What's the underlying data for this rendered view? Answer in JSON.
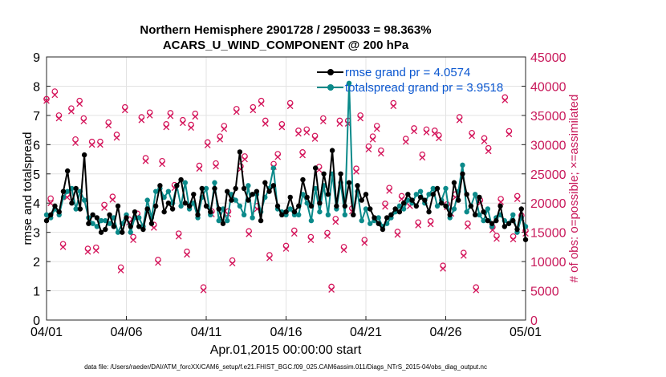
{
  "chart_data": {
    "type": "line",
    "title": "Northern Hemisphere 2901728 / 2950033 = 98.363%",
    "subtitle": "ACARS_U_WIND_COMPONENT @ 200 hPa",
    "xlabel": "Apr.01,2015 00:00:00 start",
    "ylabel_left": "rmse and totalspread",
    "ylabel_right": "# of obs: o=possible; ×=assimilated",
    "x_tick_labels": [
      "04/01",
      "04/06",
      "04/11",
      "04/16",
      "04/21",
      "04/26",
      "05/01"
    ],
    "x_tick_days": [
      0,
      5,
      10,
      15,
      20,
      25,
      30
    ],
    "xlim_days": [
      0,
      30
    ],
    "ylim_left": [
      0,
      9
    ],
    "yticks_left": [
      "0",
      "1",
      "2",
      "3",
      "4",
      "5",
      "6",
      "7",
      "8",
      "9"
    ],
    "ylim_right": [
      0,
      45000
    ],
    "yticks_right": [
      "0",
      "5000",
      "10000",
      "15000",
      "20000",
      "25000",
      "30000",
      "35000",
      "40000",
      "45000"
    ],
    "grid": true,
    "legend_position": "top-right",
    "colors": {
      "rmse": "#000000",
      "totalspread": "#0b8a8a",
      "obs": "#d4145a",
      "legend_text": "#0b57d0",
      "right_axis": "#c8185a"
    },
    "series": [
      {
        "name": "rmse grand pr = 4.0574",
        "values": [
          3.4,
          3.6,
          3.9,
          3.7,
          4.4,
          5.1,
          4.0,
          4.5,
          3.8,
          5.65,
          3.3,
          3.6,
          3.5,
          3.0,
          3.1,
          3.6,
          3.2,
          3.9,
          3.0,
          3.5,
          3.2,
          3.7,
          3.2,
          3.1,
          3.8,
          3.3,
          3.9,
          4.6,
          3.7,
          4.0,
          3.8,
          4.6,
          4.8,
          4.0,
          3.9,
          4.3,
          3.6,
          4.5,
          3.9,
          3.7,
          4.5,
          3.8,
          3.3,
          4.4,
          4.1,
          4.5,
          5.75,
          4.5,
          4.1,
          4.3,
          4.4,
          3.4,
          4.7,
          4.4,
          4.6,
          3.9,
          3.6,
          3.7,
          4.2,
          3.7,
          3.9,
          4.8,
          4.2,
          3.9,
          5.2,
          4.0,
          5.0,
          4.3,
          5.8,
          3.9,
          5.0,
          3.9,
          4.7,
          3.6,
          4.6,
          4.1,
          4.3,
          3.8,
          3.5,
          3.3,
          3.1,
          3.5,
          3.6,
          3.8,
          3.7,
          4.0,
          4.3,
          4.1,
          3.9,
          4.2,
          4.1,
          3.7,
          4.3,
          4.5,
          4.0,
          3.9,
          3.6,
          4.7,
          4.1,
          5.0,
          4.3,
          3.9,
          3.6,
          4.2,
          3.7,
          3.4,
          3.3,
          3.4,
          3.9,
          3.2,
          3.3,
          3.4,
          3.1,
          3.8,
          2.75
        ]
      },
      {
        "name": "totalspread grand pr = 3.9518",
        "values": [
          3.6,
          3.5,
          3.8,
          3.6,
          4.2,
          4.4,
          4.5,
          3.8,
          4.4,
          4.1,
          3.5,
          3.3,
          3.2,
          3.4,
          3.4,
          3.3,
          3.5,
          3.0,
          3.3,
          3.6,
          3.0,
          3.5,
          3.5,
          3.2,
          4.1,
          3.5,
          4.4,
          4.5,
          4.2,
          4.4,
          4.0,
          4.6,
          3.9,
          4.7,
          3.8,
          4.0,
          3.5,
          4.2,
          4.5,
          3.6,
          4.7,
          3.4,
          3.8,
          3.4,
          4.3,
          4.1,
          3.9,
          3.6,
          4.6,
          3.5,
          4.3,
          3.7,
          4.2,
          4.5,
          5.2,
          3.8,
          3.7,
          3.6,
          3.8,
          3.6,
          3.6,
          4.3,
          4.0,
          3.4,
          4.5,
          3.7,
          4.6,
          3.6,
          5.0,
          3.8,
          4.7,
          3.6,
          8.1,
          3.6,
          4.4,
          3.4,
          3.8,
          3.3,
          3.4,
          3.5,
          3.2,
          3.3,
          3.5,
          3.7,
          3.9,
          3.8,
          4.1,
          4.0,
          4.3,
          4.4,
          4.0,
          4.3,
          4.5,
          3.9,
          4.1,
          4.5,
          3.5,
          3.8,
          4.4,
          5.3,
          3.7,
          3.9,
          4.3,
          3.6,
          3.4,
          3.8,
          3.2,
          3.5,
          3.6,
          3.4,
          3.3,
          3.6,
          3.0,
          3.5,
          3.2
        ]
      }
    ],
    "obs_possible": [
      37800,
      20800,
      39100,
      35000,
      13000,
      21500,
      36200,
      30900,
      37500,
      34500,
      12200,
      30500,
      12400,
      30500,
      19700,
      33800,
      21100,
      31700,
      9000,
      36400,
      17200,
      14200,
      18200,
      34700,
      27700,
      35500,
      16300,
      10300,
      27200,
      33500,
      35400,
      23100,
      14800,
      34200,
      11700,
      33400,
      35300,
      26400,
      5600,
      30400,
      18600,
      26800,
      31400,
      33200,
      18600,
      10200,
      36100,
      26300,
      28000,
      15200,
      36400,
      19500,
      37500,
      34100,
      11100,
      26700,
      28400,
      33500,
      12700,
      37100,
      15300,
      32400,
      28700,
      32600,
      14200,
      31500,
      26200,
      34500,
      14900,
      5700,
      17300,
      34100,
      12500,
      34100,
      19100,
      25900,
      35000,
      13700,
      29700,
      31400,
      33200,
      29000,
      19900,
      22600,
      37100,
      15100,
      21200,
      31000,
      20000,
      32800,
      16700,
      28300,
      32600,
      16900,
      32400,
      31600,
      9300,
      19800,
      18700,
      21500,
      34700,
      11500,
      16500,
      32000,
      5600,
      20500,
      31100,
      29400,
      15900,
      14400,
      20700,
      38100,
      32300,
      14300,
      21200,
      17900,
      15300
    ],
    "obs_assimilated": [
      37500,
      20000,
      38500,
      34500,
      12500,
      21000,
      35700,
      30300,
      37000,
      34000,
      11700,
      30000,
      11900,
      30000,
      19200,
      33300,
      20600,
      31200,
      8500,
      35900,
      16700,
      13700,
      17700,
      34200,
      27200,
      35000,
      15800,
      9800,
      26700,
      33000,
      34900,
      22600,
      14300,
      33700,
      11200,
      32900,
      34800,
      25900,
      5100,
      29900,
      18100,
      26300,
      30900,
      32700,
      18100,
      9700,
      35600,
      25800,
      27500,
      14700,
      35900,
      19000,
      37000,
      33600,
      10600,
      26200,
      27900,
      33000,
      12200,
      36600,
      14800,
      31900,
      28200,
      32100,
      13700,
      31000,
      25700,
      34000,
      14400,
      5200,
      16800,
      33600,
      12000,
      33600,
      18600,
      25400,
      34500,
      13200,
      29200,
      30900,
      32700,
      28500,
      19400,
      22100,
      36600,
      14600,
      20700,
      30500,
      19500,
      32300,
      16200,
      27800,
      32100,
      16400,
      31900,
      31100,
      8800,
      19300,
      18200,
      21000,
      34200,
      11000,
      16000,
      31500,
      5100,
      20000,
      30600,
      28900,
      15400,
      13900,
      20200,
      37600,
      31800,
      13800,
      20700,
      17400,
      14800
    ]
  },
  "footer": "data file: /Users/raeder/DAI/ATM_forcXX/CAM6_setup/f.e21.FHIST_BGC.f09_025.CAM6assim.011/Diags_NTrS_2015-04/obs_diag_output.nc"
}
